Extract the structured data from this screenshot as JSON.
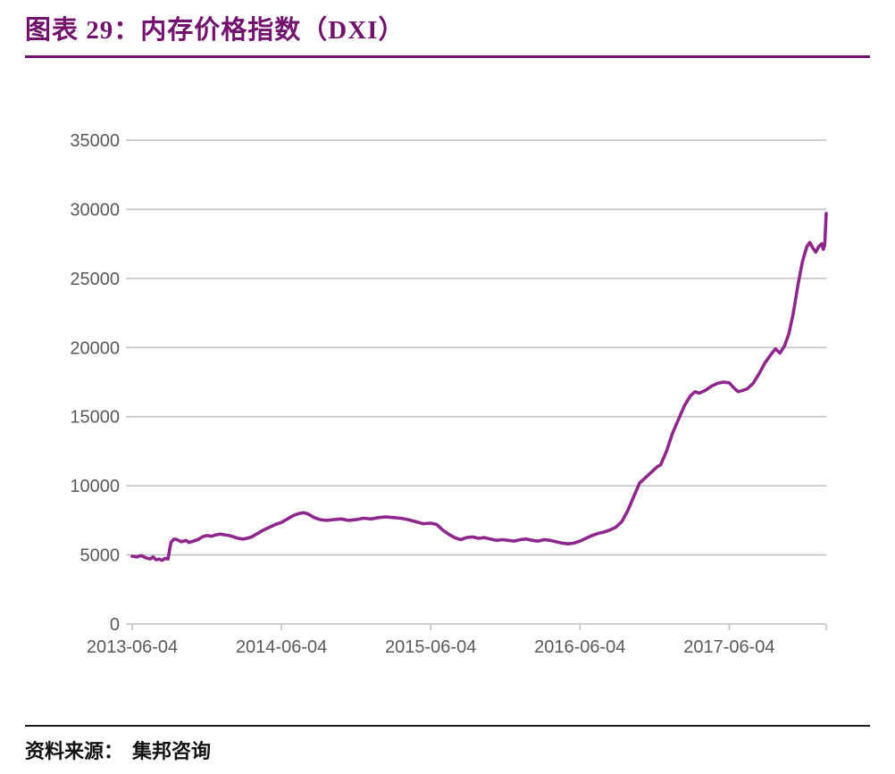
{
  "title": "图表 29：内存价格指数（DXI）",
  "source": {
    "label": "资料来源：",
    "value": "集邦咨询"
  },
  "colors": {
    "accent": "#73116E",
    "line": "#8E278C",
    "grid": "#C3C3C3",
    "axis_text": "#595959",
    "rule": "#1a1a1a"
  },
  "chart_data": {
    "type": "line",
    "title": "内存价格指数（DXI）",
    "xlabel": "",
    "ylabel": "",
    "legend": "none",
    "grid": "horizontal",
    "ylim": [
      0,
      35000
    ],
    "xlim": [
      0,
      4.65
    ],
    "y_ticks": [
      0,
      5000,
      10000,
      15000,
      20000,
      25000,
      30000,
      35000
    ],
    "x_tick_positions": [
      0,
      1,
      2,
      3,
      4
    ],
    "x_tick_labels": [
      "2013-06-04",
      "2014-06-04",
      "2015-06-04",
      "2016-06-04",
      "2017-06-04"
    ],
    "x_unit": "years since 2013-06-04",
    "series": [
      {
        "name": "DXI",
        "color": "#8E278C",
        "x": [
          0,
          0.03,
          0.06,
          0.09,
          0.12,
          0.14,
          0.16,
          0.18,
          0.2,
          0.22,
          0.24,
          0.26,
          0.28,
          0.3,
          0.33,
          0.36,
          0.38,
          0.41,
          0.44,
          0.47,
          0.5,
          0.53,
          0.56,
          0.59,
          0.62,
          0.65,
          0.68,
          0.71,
          0.74,
          0.77,
          0.8,
          0.84,
          0.88,
          0.92,
          0.96,
          1,
          1.04,
          1.08,
          1.12,
          1.15,
          1.18,
          1.22,
          1.26,
          1.3,
          1.35,
          1.4,
          1.45,
          1.5,
          1.55,
          1.6,
          1.65,
          1.7,
          1.75,
          1.8,
          1.85,
          1.9,
          1.95,
          2,
          2.04,
          2.08,
          2.12,
          2.16,
          2.2,
          2.24,
          2.28,
          2.32,
          2.36,
          2.4,
          2.44,
          2.48,
          2.52,
          2.56,
          2.6,
          2.64,
          2.68,
          2.72,
          2.76,
          2.8,
          2.84,
          2.88,
          2.92,
          2.96,
          3,
          3.04,
          3.08,
          3.12,
          3.16,
          3.2,
          3.24,
          3.28,
          3.32,
          3.36,
          3.4,
          3.44,
          3.48,
          3.52,
          3.54,
          3.58,
          3.62,
          3.66,
          3.7,
          3.74,
          3.77,
          3.8,
          3.84,
          3.88,
          3.92,
          3.96,
          4,
          4.03,
          4.06,
          4.09,
          4.12,
          4.16,
          4.2,
          4.24,
          4.28,
          4.31,
          4.34,
          4.37,
          4.4,
          4.43,
          4.46,
          4.49,
          4.52,
          4.54,
          4.56,
          4.58,
          4.6,
          4.62,
          4.63,
          4.64,
          4.65
        ],
        "y": [
          4900,
          4850,
          4950,
          4800,
          4700,
          4850,
          4650,
          4700,
          4600,
          4750,
          4700,
          5900,
          6150,
          6100,
          5950,
          6050,
          5900,
          6000,
          6100,
          6300,
          6400,
          6350,
          6450,
          6500,
          6450,
          6400,
          6300,
          6200,
          6150,
          6200,
          6300,
          6550,
          6800,
          7000,
          7200,
          7350,
          7600,
          7850,
          8000,
          8050,
          7950,
          7700,
          7550,
          7500,
          7550,
          7600,
          7500,
          7550,
          7650,
          7600,
          7700,
          7750,
          7700,
          7650,
          7550,
          7400,
          7250,
          7300,
          7200,
          6800,
          6500,
          6250,
          6100,
          6250,
          6300,
          6200,
          6250,
          6150,
          6050,
          6100,
          6050,
          6000,
          6100,
          6150,
          6050,
          6000,
          6100,
          6050,
          5950,
          5850,
          5800,
          5850,
          6000,
          6200,
          6400,
          6550,
          6650,
          6800,
          7000,
          7400,
          8200,
          9200,
          10200,
          10600,
          11000,
          11400,
          11500,
          12500,
          13800,
          14800,
          15800,
          16500,
          16800,
          16700,
          16900,
          17200,
          17400,
          17500,
          17450,
          17100,
          16800,
          16900,
          17000,
          17400,
          18100,
          18900,
          19500,
          19900,
          19600,
          20100,
          21000,
          22500,
          24500,
          26200,
          27300,
          27600,
          27200,
          26900,
          27300,
          27500,
          27100,
          27400,
          29700
        ]
      }
    ]
  }
}
